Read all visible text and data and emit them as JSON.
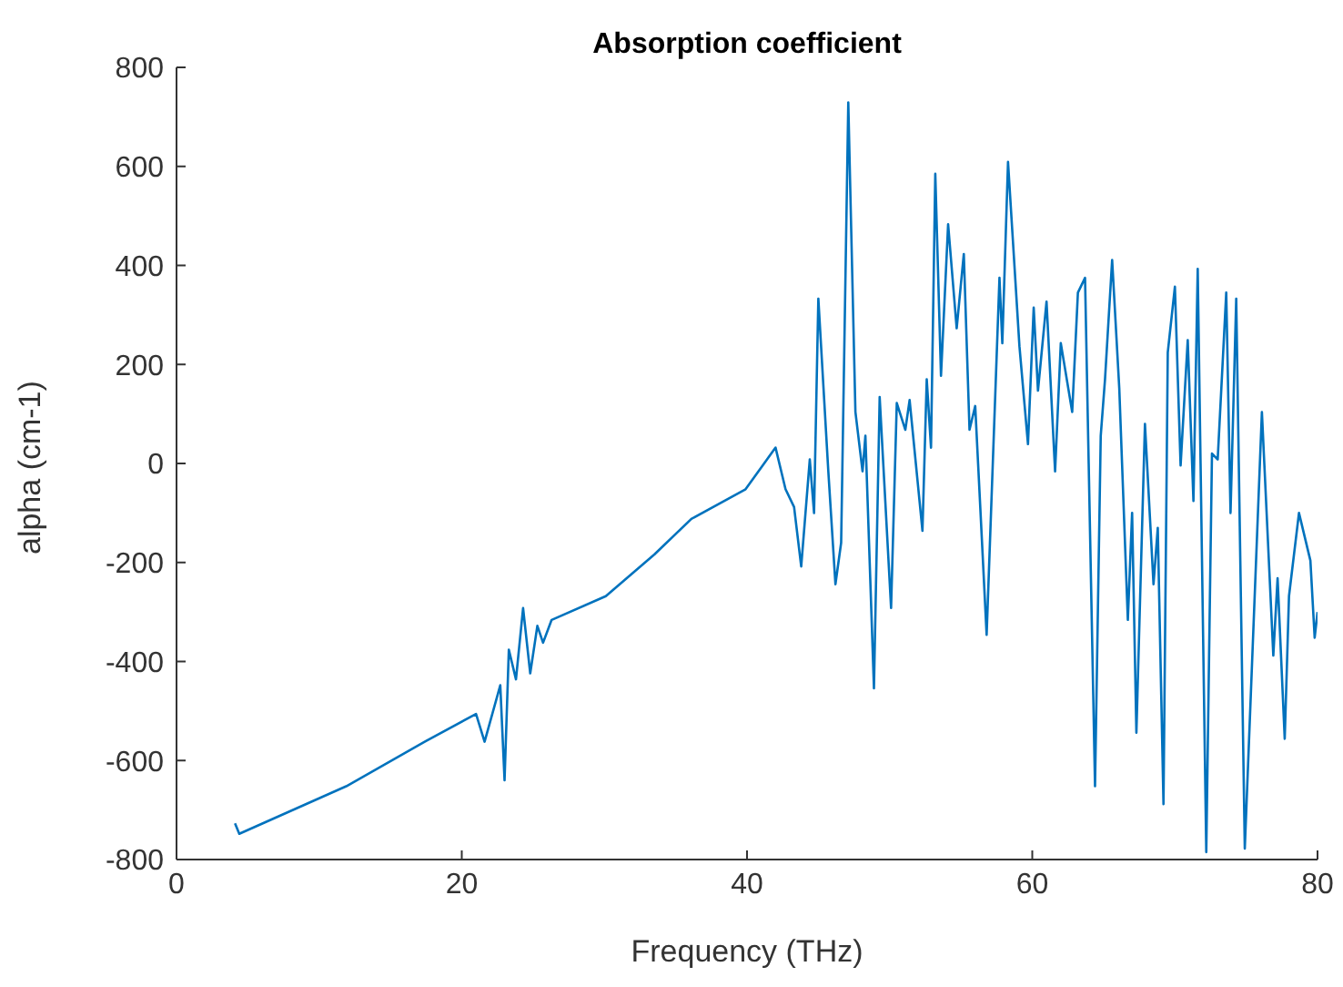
{
  "chart_data": {
    "type": "line",
    "title": "Absorption coefficient",
    "xlabel": "Frequency (THz)",
    "ylabel": "alpha (cm-1)",
    "x": [
      4.1,
      4.4,
      11.9,
      17.4,
      21.0,
      21.6,
      22.7,
      23.0,
      23.3,
      23.8,
      24.3,
      24.8,
      25.3,
      25.7,
      26.3,
      30.1,
      33.5,
      36.1,
      39.9,
      42.0,
      42.7,
      43.3,
      43.8,
      44.4,
      44.7,
      45.0,
      45.7,
      46.2,
      46.6,
      47.1,
      47.6,
      48.1,
      48.3,
      48.9,
      49.3,
      50.1,
      50.5,
      51.1,
      51.4,
      52.3,
      52.6,
      52.9,
      53.2,
      53.6,
      54.1,
      54.7,
      55.2,
      55.6,
      56.0,
      56.8,
      57.7,
      57.9,
      58.3,
      59.1,
      59.7,
      60.1,
      60.4,
      61.0,
      61.6,
      62.0,
      62.8,
      63.2,
      63.7,
      64.4,
      64.8,
      65.1,
      65.6,
      66.1,
      66.7,
      67.0,
      67.3,
      67.9,
      68.5,
      68.8,
      69.2,
      69.5,
      70.0,
      70.4,
      70.9,
      71.3,
      71.6,
      72.2,
      72.6,
      73.0,
      73.6,
      73.9,
      74.3,
      74.9,
      76.1,
      76.9,
      77.2,
      77.7,
      78.0,
      78.7,
      79.5,
      79.8,
      80.0
    ],
    "series": [
      {
        "color": "#0072bd",
        "values": [
          -727,
          -748,
          -652,
          -562,
          -506,
          -562,
          -448,
          -640,
          -376,
          -436,
          -292,
          -424,
          -328,
          -362,
          -316,
          -268,
          -184,
          -112,
          -52,
          32,
          -52,
          -88,
          -208,
          8,
          -100,
          333,
          -16,
          -244,
          -160,
          729,
          104,
          -16,
          56,
          -454,
          134,
          -292,
          122,
          68,
          128,
          -136,
          170,
          32,
          585,
          177,
          483,
          273,
          423,
          68,
          116,
          -346,
          375,
          243,
          609,
          237,
          39,
          315,
          147,
          327,
          -16,
          243,
          104,
          345,
          375,
          -652,
          56,
          170,
          411,
          152,
          -316,
          -100,
          -544,
          80,
          -244,
          -130,
          -688,
          224,
          357,
          -4,
          249,
          -76,
          393,
          -785,
          20,
          8,
          345,
          -100,
          333,
          -778,
          104,
          -388,
          -232,
          -556,
          -268,
          -100,
          -196,
          -352,
          -300
        ]
      }
    ],
    "xlim": [
      0,
      80
    ],
    "xticks": [
      0,
      20,
      40,
      60,
      80
    ],
    "ylim": [
      -800,
      800
    ],
    "yticks": [
      -800,
      -600,
      -400,
      -200,
      0,
      200,
      400,
      600,
      800
    ],
    "grid": false,
    "legend": false,
    "marker": "none",
    "line_style": "solid"
  }
}
